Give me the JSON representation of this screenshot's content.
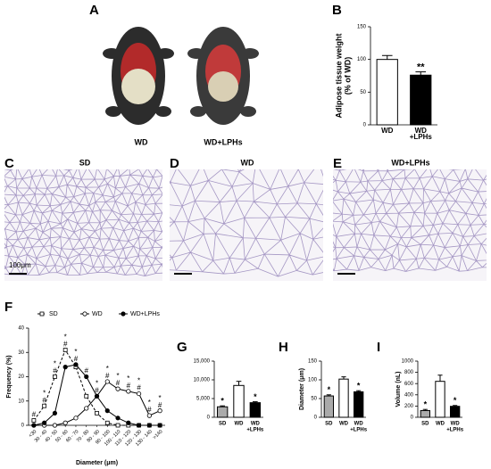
{
  "panel_labels": [
    "A",
    "B",
    "C",
    "D",
    "E",
    "F",
    "G",
    "H",
    "I"
  ],
  "photo_labels": [
    "WD",
    "WD+LPHs"
  ],
  "histology_titles": [
    "SD",
    "WD",
    "WD+LPHs"
  ],
  "scale_bar_label": "100μm",
  "chart_data": [
    {
      "type": "bar",
      "ylabel": [
        "Adipose tissue weight",
        "(% of WD)"
      ],
      "categories": [
        [
          "WD"
        ],
        [
          "WD",
          "+LPHs"
        ]
      ],
      "values": [
        100,
        76
      ],
      "errors": [
        6,
        5
      ],
      "colors": [
        "#ffffff",
        "#000000"
      ],
      "annotations": [
        null,
        "**"
      ],
      "ylim": [
        0,
        150
      ],
      "yticks": [
        0,
        50,
        100,
        150
      ]
    },
    {
      "type": "line",
      "ylabel": [
        "Frequency (%)"
      ],
      "xlabel": "Diameter (μm)",
      "categories": [
        "<30",
        "30 - 40",
        "40 - 50",
        "50 - 60",
        "60 - 70",
        "70 - 80",
        "80 - 90",
        "90 - 100",
        "100 - 110",
        "110 - 120",
        "120 - 130",
        "130 - 140",
        ">140"
      ],
      "series": [
        {
          "name": "SD",
          "color": "#000000",
          "dash": true,
          "marker": "square",
          "marker_fill": "#ffffff",
          "values": [
            2,
            8,
            20,
            31,
            24,
            12,
            5,
            1,
            0,
            0,
            0,
            0,
            0
          ]
        },
        {
          "name": "WD",
          "color": "#000000",
          "dash": false,
          "marker": "circle",
          "marker_fill": "#ffffff",
          "values": [
            0,
            0,
            0,
            1,
            3,
            7,
            12,
            18,
            15,
            14,
            13,
            4,
            6
          ]
        },
        {
          "name": "WD+LPHs",
          "color": "#000000",
          "dash": false,
          "marker": "circle",
          "marker_fill": "#000000",
          "values": [
            0,
            1,
            5,
            24,
            25,
            20,
            12,
            6,
            3,
            1,
            0,
            0,
            0
          ]
        }
      ],
      "significance": [
        [
          "#"
        ],
        [
          "*",
          "#"
        ],
        [
          "*",
          "#"
        ],
        [
          "*",
          "#"
        ],
        [
          "*",
          "#"
        ],
        [
          "#"
        ],
        [
          "*",
          "#"
        ],
        [
          "*",
          "#"
        ],
        [
          "*",
          "#"
        ],
        [
          "*",
          "#"
        ],
        [
          "*",
          "#"
        ],
        [
          "*",
          "#"
        ],
        [
          "*",
          "#"
        ]
      ],
      "ylim": [
        0,
        40
      ],
      "yticks": [
        0,
        10,
        20,
        30,
        40
      ]
    },
    {
      "type": "bar",
      "categories": [
        [
          "SD"
        ],
        [
          "WD"
        ],
        [
          "WD",
          "+LPHs"
        ]
      ],
      "values": [
        2800,
        8500,
        3900
      ],
      "errors": [
        250,
        1100,
        250
      ],
      "colors": [
        "#aaaaaa",
        "#ffffff",
        "#000000"
      ],
      "annotations": [
        "*",
        null,
        "*"
      ],
      "ylim": [
        0,
        15000
      ],
      "yticks": [
        0,
        {
          "value": 5000,
          "label": "5,000"
        },
        {
          "value": 10000,
          "label": "10,000"
        },
        {
          "value": 15000,
          "label": "15,000"
        }
      ]
    },
    {
      "type": "bar",
      "ylabel": [
        "Diameter (μm)"
      ],
      "categories": [
        [
          "SD"
        ],
        [
          "WD"
        ],
        [
          "WD",
          "+LPHs"
        ]
      ],
      "values": [
        57,
        102,
        68
      ],
      "errors": [
        3,
        6,
        3
      ],
      "colors": [
        "#aaaaaa",
        "#ffffff",
        "#000000"
      ],
      "annotations": [
        "*",
        null,
        "*"
      ],
      "ylim": [
        0,
        150
      ],
      "yticks": [
        0,
        50,
        100,
        150
      ]
    },
    {
      "type": "bar",
      "ylabel": [
        "Volume (nL)"
      ],
      "categories": [
        [
          "SD"
        ],
        [
          "WD"
        ],
        [
          "WD",
          "+LPHs"
        ]
      ],
      "values": [
        120,
        640,
        195
      ],
      "errors": [
        20,
        110,
        15
      ],
      "colors": [
        "#aaaaaa",
        "#ffffff",
        "#000000"
      ],
      "annotations": [
        "*",
        null,
        "*"
      ],
      "ylim": [
        0,
        1000
      ],
      "yticks": [
        0,
        200,
        400,
        600,
        800,
        1000
      ]
    }
  ]
}
